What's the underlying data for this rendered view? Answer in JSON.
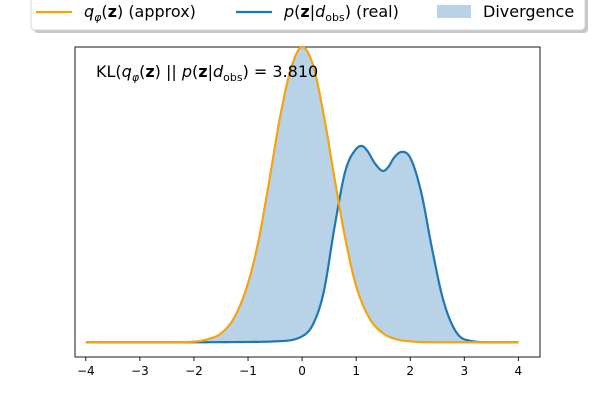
{
  "chart_data": {
    "type": "line",
    "annotation": "KL(qφ(z) || p(z|dobs) = 3.810",
    "xlim": [
      -4.2,
      4.4
    ],
    "ylim": [
      -0.05,
      1.0
    ],
    "xticks": [
      -4,
      -3,
      -2,
      -1,
      0,
      1,
      2,
      3,
      4
    ],
    "xtick_labels": [
      "−4",
      "−3",
      "−2",
      "−1",
      "0",
      "1",
      "2",
      "3",
      "4"
    ],
    "yticks_visible": false,
    "grid": false,
    "legend_placement": "top",
    "legend": [
      {
        "label": "qφ(z) (approx)",
        "kind": "line",
        "color": "#f5a30f"
      },
      {
        "label": "p(z|dobs) (real)",
        "kind": "line",
        "color": "#1f77b4"
      },
      {
        "label": "Divergence",
        "kind": "patch",
        "color": "#b8d3e8"
      }
    ],
    "series": [
      {
        "name": "qφ(z) (approx)",
        "color": "#f5a30f",
        "x": [
          -4,
          -3.5,
          -3,
          -2.5,
          -2,
          -1.75,
          -1.5,
          -1.25,
          -1,
          -0.8,
          -0.6,
          -0.4,
          -0.2,
          0,
          0.2,
          0.4,
          0.6,
          0.8,
          1,
          1.25,
          1.5,
          1.75,
          2,
          2.5,
          3,
          3.5,
          4
        ],
        "y": [
          0,
          0,
          0,
          0,
          0.002,
          0.01,
          0.03,
          0.085,
          0.2,
          0.35,
          0.555,
          0.77,
          0.93,
          1.0,
          0.94,
          0.77,
          0.555,
          0.35,
          0.19,
          0.08,
          0.03,
          0.01,
          0.003,
          0,
          0,
          0,
          0
        ]
      },
      {
        "name": "p(z|dobs) (real)",
        "color": "#1f77b4",
        "x": [
          -4,
          -3,
          -2,
          -1,
          -0.5,
          0,
          0.2,
          0.4,
          0.6,
          0.8,
          1,
          1.1,
          1.2,
          1.35,
          1.5,
          1.6,
          1.7,
          1.85,
          2,
          2.2,
          2.4,
          2.6,
          2.8,
          3,
          3.5,
          4
        ],
        "y": [
          0,
          0,
          0,
          0.001,
          0.003,
          0.02,
          0.06,
          0.17,
          0.39,
          0.58,
          0.655,
          0.665,
          0.65,
          0.605,
          0.58,
          0.595,
          0.625,
          0.645,
          0.625,
          0.51,
          0.32,
          0.15,
          0.05,
          0.01,
          0,
          0
        ]
      }
    ]
  }
}
